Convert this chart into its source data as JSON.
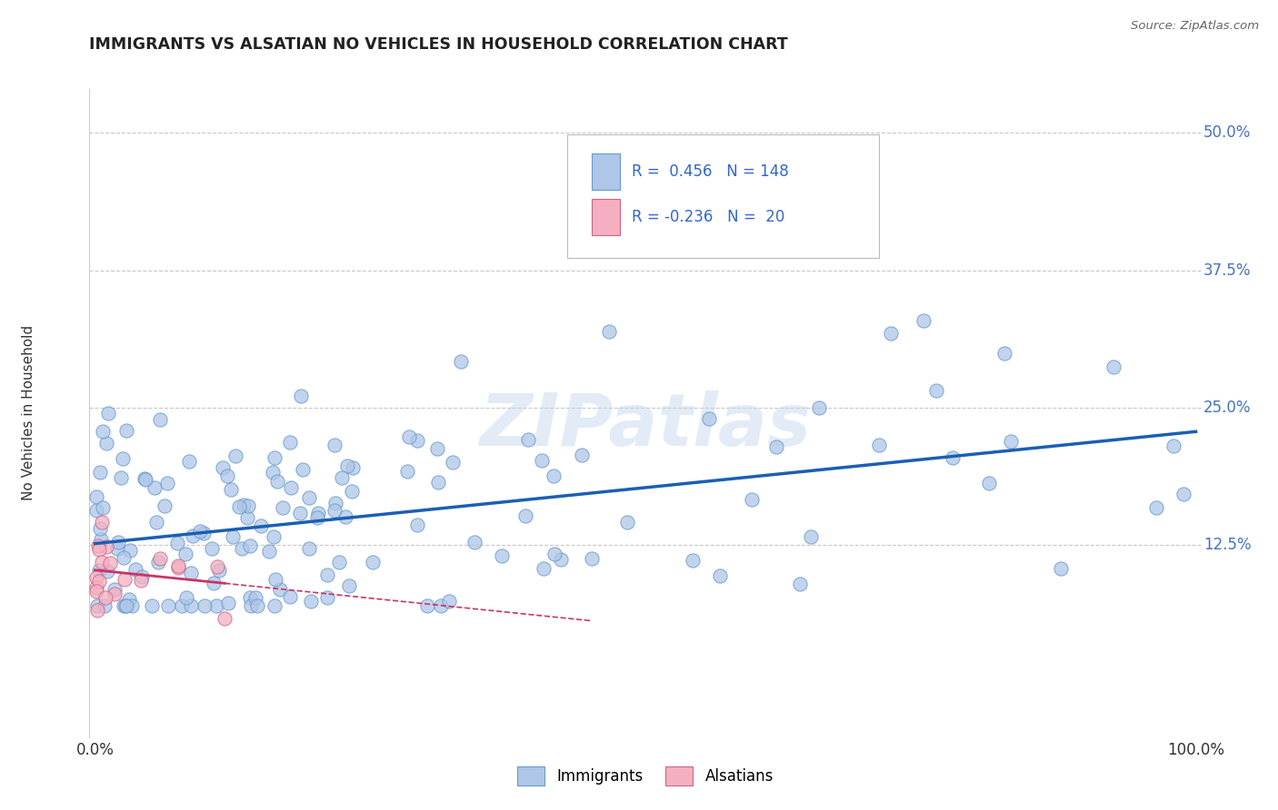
{
  "title": "IMMIGRANTS VS ALSATIAN NO VEHICLES IN HOUSEHOLD CORRELATION CHART",
  "source": "Source: ZipAtlas.com",
  "ylabel": "No Vehicles in Household",
  "ytick_values": [
    0.125,
    0.25,
    0.375,
    0.5
  ],
  "ytick_labels": [
    "12.5%",
    "25.0%",
    "37.5%",
    "50.0%"
  ],
  "xmin": 0.0,
  "xmax": 1.0,
  "ymin": -0.05,
  "ymax": 0.54,
  "immigrants_color": "#aec6e8",
  "immigrants_edge": "#6699cc",
  "alsatians_color": "#f4b0c0",
  "alsatians_edge": "#cc6688",
  "trend_immigrants_color": "#1a5fb4",
  "trend_alsatians_color": "#cc3366",
  "background_color": "#ffffff",
  "grid_color": "#c8c8c8",
  "watermark": "ZIPatlas",
  "dot_size": 120,
  "legend_r1": "R =  0.456",
  "legend_n1": "N = 148",
  "legend_r2": "R = -0.236",
  "legend_n2": "N =  20"
}
